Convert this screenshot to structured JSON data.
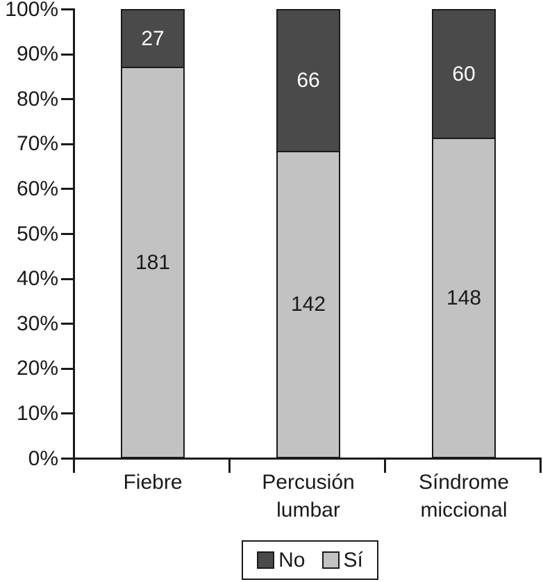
{
  "chart_data": {
    "type": "bar",
    "subtype": "stacked-percent",
    "title": "",
    "categories": [
      "Fiebre",
      "Percusión lumbar",
      "Síndrome miccional"
    ],
    "category_label_lines": [
      [
        "Fiebre"
      ],
      [
        "Percusión",
        "lumbar"
      ],
      [
        "Síndrome",
        "miccional"
      ]
    ],
    "series": [
      {
        "name": "Sí",
        "values": [
          181,
          142,
          148
        ],
        "color": "#c2c2c2",
        "label_color": "#1a1a1a"
      },
      {
        "name": "No",
        "values": [
          27,
          66,
          60
        ],
        "color": "#4a4a4a",
        "label_color": "#ffffff"
      }
    ],
    "stack_order_bottom_to_top": [
      "Sí",
      "No"
    ],
    "segment_percentages": {
      "Sí": [
        87.0,
        68.3,
        71.2
      ],
      "No": [
        13.0,
        31.7,
        28.8
      ]
    },
    "y_axis": {
      "ticks": [
        "0%",
        "10%",
        "20%",
        "30%",
        "40%",
        "50%",
        "60%",
        "70%",
        "80%",
        "90%",
        "100%"
      ],
      "min": 0,
      "max": 100,
      "unit": "%"
    },
    "xlabel": "",
    "ylabel": "",
    "grid": "off",
    "legend_position": "bottom-center"
  },
  "legend": {
    "items": [
      {
        "label": "No",
        "color": "#4a4a4a"
      },
      {
        "label": "Sí",
        "color": "#c2c2c2"
      }
    ]
  },
  "colors": {
    "background": "#ffffff",
    "axis": "#1a1a1a",
    "bar_border": "#1a1a1a",
    "dark_segment": "#4a4a4a",
    "light_segment": "#c2c2c2"
  }
}
